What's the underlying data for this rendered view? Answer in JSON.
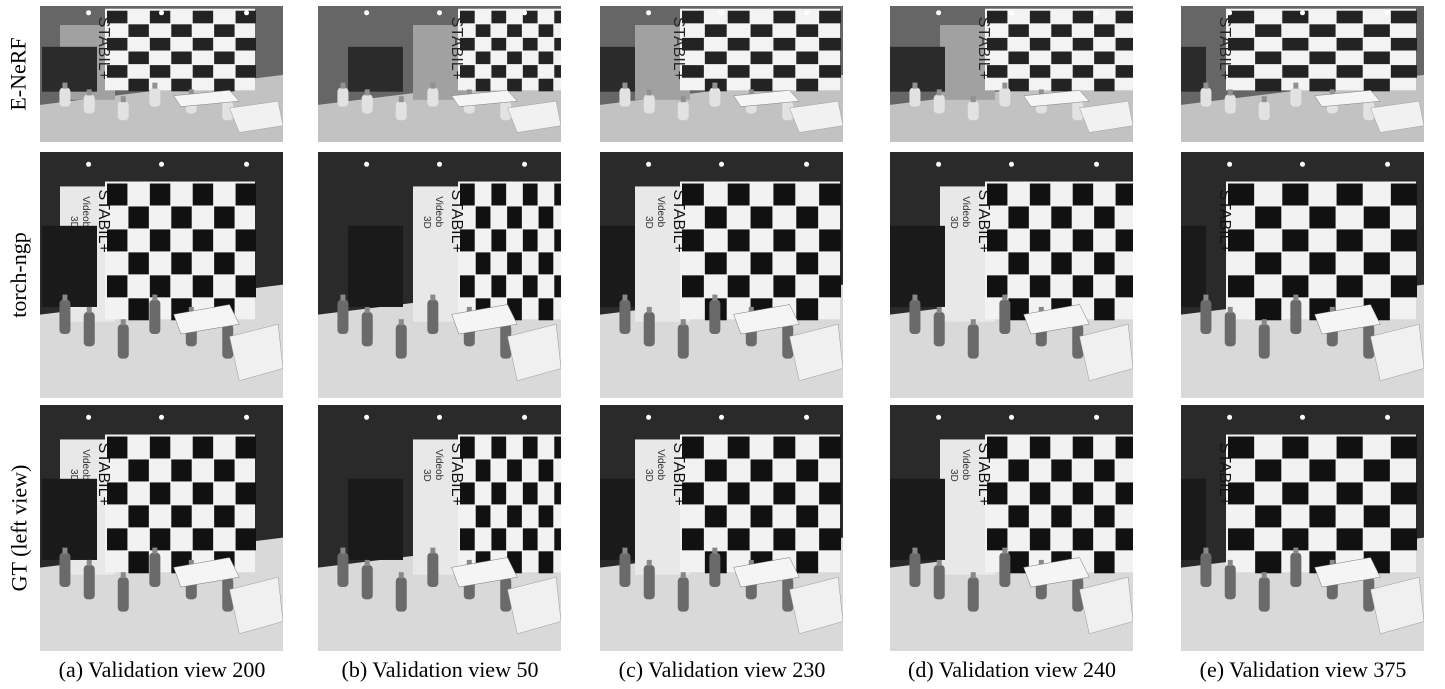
{
  "figure": {
    "rows": [
      {
        "label": "E-NeRF",
        "style": "enerf"
      },
      {
        "label": "torch-ngp",
        "style": "render"
      },
      {
        "label": "GT (left view)",
        "style": "render"
      }
    ],
    "columns": [
      {
        "caption": "(a) Validation view 200",
        "view": "200"
      },
      {
        "caption": "(b) Validation view 50",
        "view": "50"
      },
      {
        "caption": "(c) Validation view 230",
        "view": "230"
      },
      {
        "caption": "(d) Validation view 240",
        "view": "240"
      },
      {
        "caption": "(e) Validation view 375",
        "view": "375"
      }
    ],
    "scene_text": {
      "board_brand": "STABIL+",
      "poster_text_1": "Videob",
      "poster_text_2": "3D"
    },
    "colors": {
      "background": "#ffffff",
      "dark_square": "#111111",
      "light_square": "#f2f2f2",
      "table": "#d9d9d9",
      "wall": "#2a2a2a"
    }
  }
}
